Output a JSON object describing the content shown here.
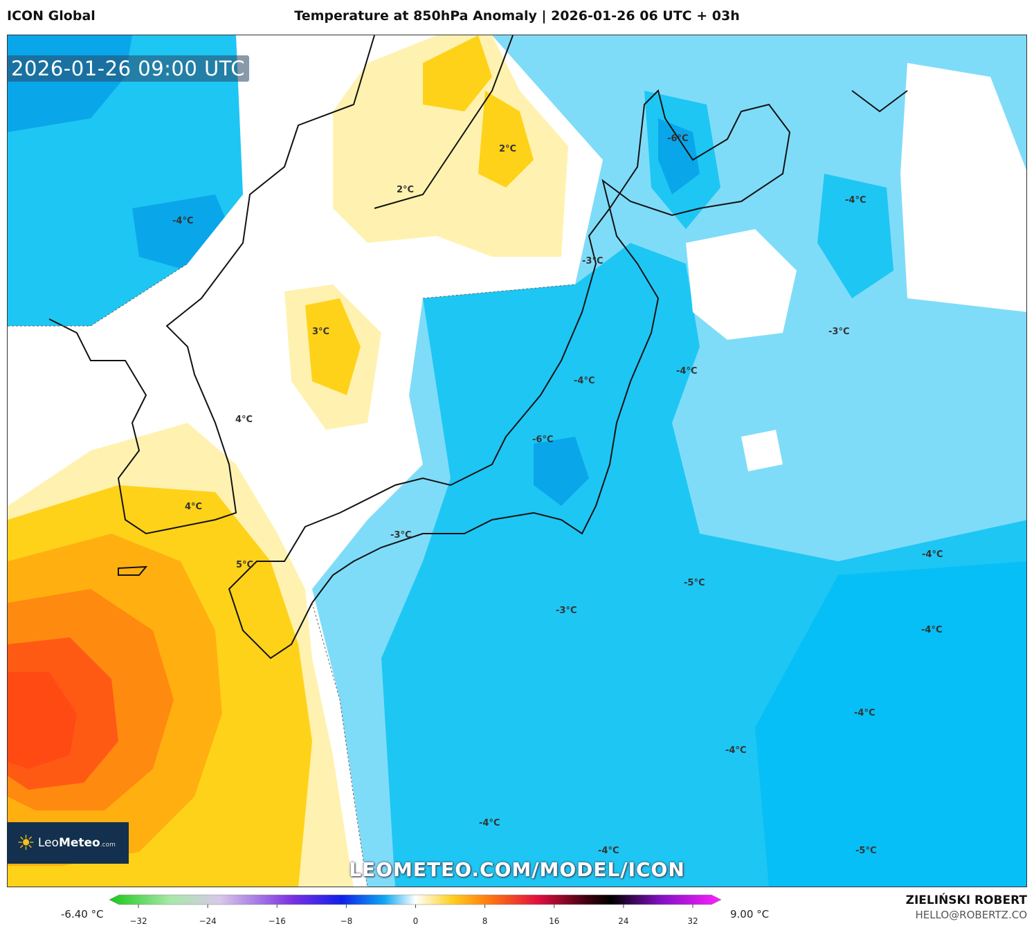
{
  "header": {
    "model": "ICON Global",
    "title": "Temperature at 850hPa Anomaly | 2026-01-26 06 UTC + 03h"
  },
  "map": {
    "valid_time": "2026-01-26 09:00 UTC",
    "labels": [
      {
        "text": "-6°C"
      },
      {
        "text": "2°C"
      },
      {
        "text": "2°C"
      },
      {
        "text": "-4°C"
      },
      {
        "text": "-4°C"
      },
      {
        "text": "-3°C"
      },
      {
        "text": "3°C"
      },
      {
        "text": "-3°C"
      },
      {
        "text": "-4°C"
      },
      {
        "text": "-4°C"
      },
      {
        "text": "4°C"
      },
      {
        "text": "-6°C"
      },
      {
        "text": "4°C"
      },
      {
        "text": "-3°C"
      },
      {
        "text": "-4°C"
      },
      {
        "text": "5°C"
      },
      {
        "text": "-5°C"
      },
      {
        "text": "-3°C"
      },
      {
        "text": "-4°C"
      },
      {
        "text": "-4°C"
      },
      {
        "text": "-4°C"
      },
      {
        "text": "-4°C"
      },
      {
        "text": "-4°C"
      },
      {
        "text": "-5°C"
      }
    ],
    "watermark": "LEOMETEO.COM/MODEL/ICON"
  },
  "logo": {
    "name": "LeoMeteo",
    "name_bold": "Meteo",
    "name_plain": "Leo",
    "domain": ".com"
  },
  "colorbar": {
    "min_label": "-6.40 °C",
    "max_label": "9.00 °C",
    "ticks": [
      "−32",
      "−24",
      "−16",
      "−8",
      "0",
      "8",
      "16",
      "24",
      "32"
    ]
  },
  "credits": {
    "author": "ZIELIŃSKI ROBERT",
    "email": "HELLO@ROBERTZ.CO"
  },
  "colors": {
    "cold_dark": "#0aa6ea",
    "cold": "#1ec6f4",
    "cool": "#7fdcf8",
    "neutral": "#ffffff",
    "warm_light": "#fff2b0",
    "warm": "#ffd21a",
    "hot": "#ff8a10",
    "hotter": "#ff4a14"
  }
}
